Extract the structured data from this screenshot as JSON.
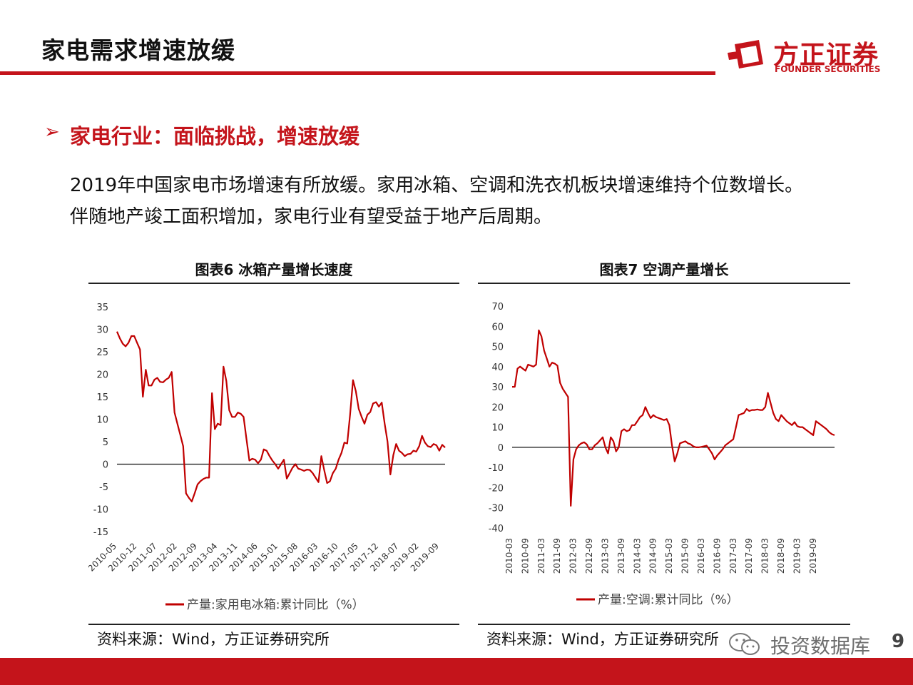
{
  "header": {
    "title": "家电需求增速放缓"
  },
  "logo": {
    "cn": "方正证券",
    "en": "FOUNDER SECURITIES"
  },
  "section": {
    "bullet": "➢",
    "heading": "家电行业：面临挑战，增速放缓"
  },
  "body": {
    "line1": "2019年中国家电市场增速有所放缓。家用冰箱、空调和洗衣机板块增速维持个位数增长。",
    "line2": "伴随地产竣工面积增加，家电行业有望受益于地产后周期。"
  },
  "colors": {
    "accent": "#c4141b",
    "series": "#c00000"
  },
  "chart_data": [
    {
      "type": "line",
      "title": "图表6 冰箱产量增长速度",
      "ylim": [
        -15,
        35
      ],
      "yticks": [
        35,
        30,
        25,
        20,
        15,
        10,
        5,
        0,
        -5,
        -10,
        -15
      ],
      "xticks": [
        "2010-05",
        "2010-12",
        "2011-07",
        "2012-02",
        "2012-09",
        "2013-04",
        "2013-11",
        "2014-06",
        "2015-01",
        "2015-08",
        "2016-03",
        "2016-10",
        "2017-05",
        "2017-12",
        "2018-07",
        "2019-02",
        "2019-09"
      ],
      "x_start": "2010-05",
      "series": [
        {
          "name": "产量:家用电冰箱:累计同比（%）",
          "values": [
            29.5,
            28,
            26.8,
            26.2,
            27,
            28.5,
            28.5,
            27,
            25.5,
            15,
            21,
            17.5,
            17.5,
            18.8,
            19.2,
            18.3,
            18.2,
            18.8,
            19.2,
            20.5,
            11.5,
            9,
            6.5,
            4,
            -6.5,
            -7.5,
            -8.3,
            -6.5,
            -4.5,
            -3.8,
            -3.3,
            -3,
            -3,
            15.8,
            7.8,
            9,
            8.7,
            21.7,
            18.5,
            12,
            10.5,
            10.5,
            11.5,
            11.2,
            10.5,
            5.5,
            0.8,
            1.2,
            1,
            0.2,
            1,
            3.3,
            3,
            1.8,
            0.8,
            0,
            -1,
            0,
            1,
            -3.2,
            -2,
            -0.8,
            0,
            -1,
            -1.2,
            -1.5,
            -1.2,
            -1.3,
            -2,
            -3,
            -4,
            1.8,
            -1.3,
            -4.2,
            -3.8,
            -2,
            -1,
            1,
            2.5,
            4.8,
            4.6,
            11,
            18.7,
            16.2,
            12.3,
            10.5,
            9,
            11,
            11.6,
            13.5,
            13.8,
            12.8,
            13.7,
            9,
            5,
            -2.3,
            2,
            4.5,
            3,
            2.5,
            1.8,
            2.2,
            2.3,
            3,
            2.8,
            4,
            6.3,
            4.8,
            4,
            3.8,
            4.5,
            4.2,
            3,
            4.3,
            3.7
          ]
        }
      ]
    },
    {
      "type": "line",
      "title": "图表7 空调产量增长",
      "ylim": [
        -40,
        70
      ],
      "yticks": [
        70,
        60,
        50,
        40,
        30,
        20,
        10,
        0,
        -10,
        -20,
        -30,
        -40
      ],
      "xticks": [
        "2010-03",
        "2010-09",
        "2011-03",
        "2011-09",
        "2012-03",
        "2012-09",
        "2013-03",
        "2013-09",
        "2014-03",
        "2014-09",
        "2015-03",
        "2015-09",
        "2016-03",
        "2016-09",
        "2017-03",
        "2017-09",
        "2018-03",
        "2018-09",
        "2019-03",
        "2019-09"
      ],
      "x_start": "2010-03",
      "series": [
        {
          "name": "产量:空调:累计同比（%）",
          "values": [
            30,
            30,
            39,
            40,
            39,
            38,
            41,
            40.5,
            40,
            41,
            58,
            55,
            48,
            44,
            40,
            42,
            41.5,
            40.5,
            32,
            29,
            27,
            25,
            -29,
            -6,
            -1,
            1,
            2,
            2.5,
            1.5,
            -1,
            -1,
            1,
            2,
            3.5,
            5,
            0,
            -3,
            5,
            3,
            -2,
            0,
            8,
            9,
            8,
            8.5,
            11,
            11,
            13,
            15,
            16,
            20,
            17,
            14.5,
            16,
            15,
            14.5,
            14,
            13.5,
            14,
            11,
            1,
            -7,
            -3,
            2,
            2.5,
            3,
            2,
            1.5,
            0.5,
            0,
            0,
            0.2,
            0.5,
            0.8,
            -1,
            -3,
            -6,
            -4,
            -2.5,
            -1,
            1,
            2,
            3,
            4,
            10,
            16,
            16.5,
            17,
            19,
            18,
            18.5,
            18.5,
            18.8,
            18.5,
            18.5,
            20,
            27,
            22,
            17,
            14,
            13,
            16,
            14.5,
            13,
            12,
            11,
            12.5,
            10.5,
            10,
            10,
            9,
            8,
            7,
            6,
            13,
            12,
            11,
            10,
            9,
            7.5,
            6.5,
            6
          ]
        }
      ]
    }
  ],
  "sources": {
    "chart1": "资料来源：Wind，方正证券研究所",
    "chart2": "资料来源：Wind，方正证券研究所"
  },
  "watermark": {
    "text": "投资数据库",
    "icon": "wechat-icon"
  },
  "page": {
    "number": "9"
  }
}
